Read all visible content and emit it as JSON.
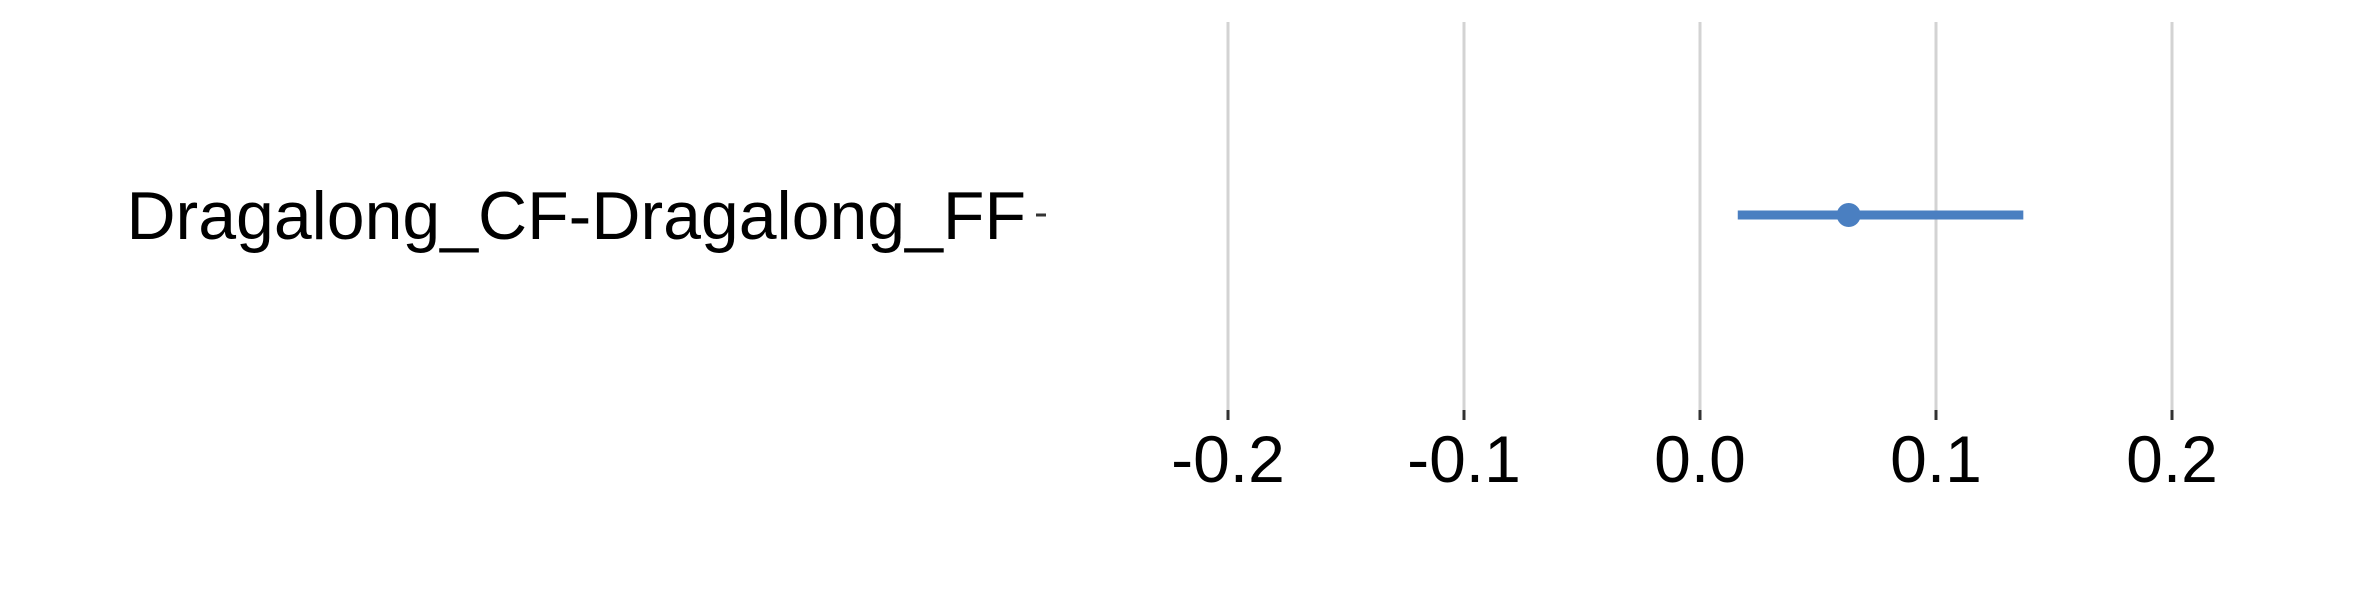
{
  "chart_data": {
    "type": "forest",
    "title": "",
    "xlabel": "",
    "ylabel": "",
    "xlim": [
      -0.2,
      0.2
    ],
    "x_ticks": [
      -0.2,
      -0.1,
      0.0,
      0.1,
      0.2
    ],
    "x_tick_labels": [
      "-0.2",
      "-0.1",
      "0.0",
      "0.1",
      "0.2"
    ],
    "grid": "vertical",
    "categories": [
      "Dragalong_CF-Dragalong_FF"
    ],
    "series": [
      {
        "estimate": [
          0.063
        ],
        "lower": [
          0.016
        ],
        "upper": [
          0.137
        ],
        "color": "#4a7fc1"
      }
    ],
    "grid_color": "#d3d3d3"
  }
}
